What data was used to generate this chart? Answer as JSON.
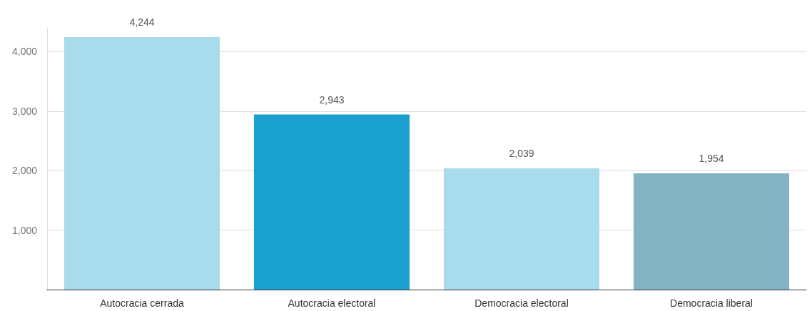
{
  "chart_data": {
    "type": "bar",
    "categories": [
      "Autocracia cerrada",
      "Autocracia electoral",
      "Democracia electoral",
      "Democracia liberal"
    ],
    "values": [
      4244,
      2943,
      2039,
      1954
    ],
    "colors": [
      "#a8dcec",
      "#1aa1cf",
      "#a8dcec",
      "#84b4c4"
    ],
    "value_labels": [
      "4,244",
      "2,943",
      "2,039",
      "1,954"
    ],
    "ylim": [
      0,
      4400
    ],
    "yticks": [
      {
        "value": 1000,
        "label": "1,000"
      },
      {
        "value": 2000,
        "label": "2,000"
      },
      {
        "value": 3000,
        "label": "3,000"
      },
      {
        "value": 4000,
        "label": "4,000"
      }
    ],
    "grid": "y"
  }
}
